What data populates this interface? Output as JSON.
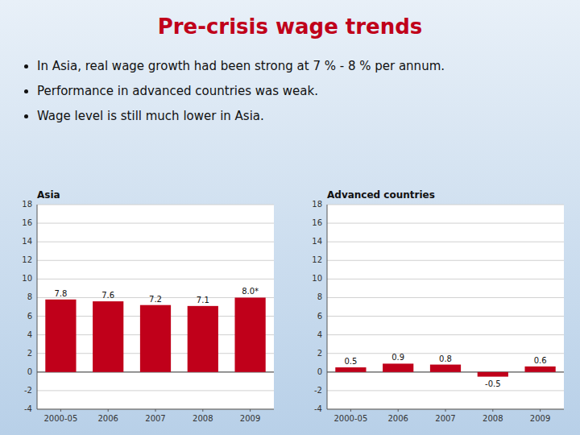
{
  "title": "Pre-crisis wage trends",
  "annotations": [
    "In Asia, real wage growth had been strong at 7 % - 8 % per annum.",
    "Performance in advanced countries was weak.",
    "Wage level is still much lower in Asia."
  ],
  "chart_data": [
    {
      "type": "bar",
      "title": "Asia",
      "categories": [
        "2000-05",
        "2006",
        "2007",
        "2008",
        "2009"
      ],
      "values": [
        7.8,
        7.6,
        7.2,
        7.1,
        8.0
      ],
      "value_labels": [
        "7.8",
        "7.6",
        "7.2",
        "7.1",
        "8.0*"
      ],
      "color": "#C0001A",
      "ylim": [
        -4,
        18
      ],
      "yticks": [
        -4,
        -2,
        0,
        2,
        4,
        6,
        8,
        10,
        12,
        14,
        16,
        18
      ],
      "grid": true,
      "data_labels": true
    },
    {
      "type": "bar",
      "title": "Advanced countries",
      "categories": [
        "2000-05",
        "2006",
        "2007",
        "2008",
        "2009"
      ],
      "values": [
        0.5,
        0.9,
        0.8,
        -0.5,
        0.6
      ],
      "color": "#C0001A",
      "ylim": [
        -4,
        18
      ],
      "yticks": [
        -4,
        -2,
        0,
        2,
        4,
        6,
        8,
        10,
        12,
        14,
        16,
        18
      ],
      "grid": true,
      "data_labels": true
    }
  ]
}
